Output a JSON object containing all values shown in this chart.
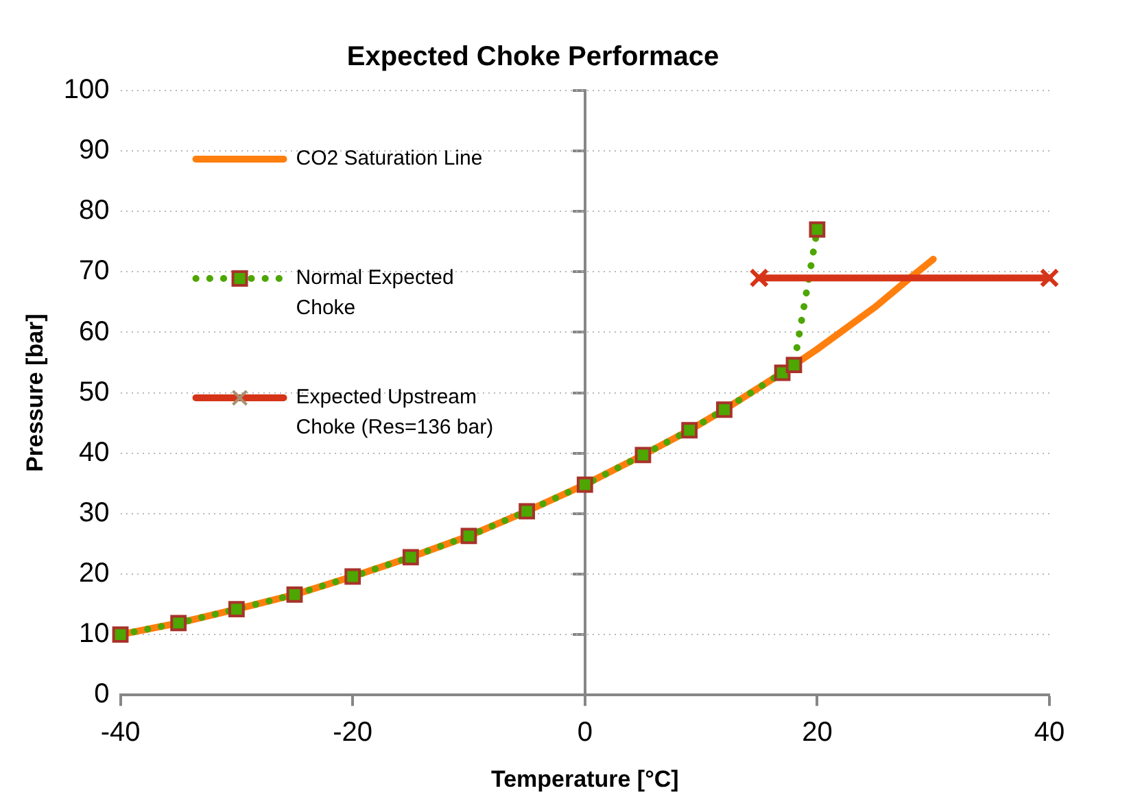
{
  "chart_data": {
    "type": "line",
    "title": "Expected Choke Performace",
    "xlabel": "Temperature [°C]",
    "ylabel": "Pressure [bar]",
    "xlim": [
      -40,
      40
    ],
    "xticks": [
      -40,
      -20,
      0,
      20,
      40
    ],
    "ylim": [
      0,
      100
    ],
    "yticks": [
      0,
      10,
      20,
      30,
      40,
      50,
      60,
      70,
      80,
      90,
      100
    ],
    "grid": "y",
    "legend": "top left",
    "series": [
      {
        "name": "CO2 Saturation Line",
        "color": "#ff7f0e",
        "line_style": "solid",
        "x": [
          -40,
          -35,
          -30,
          -25,
          -20,
          -15,
          -10,
          -5,
          0,
          5,
          9,
          12,
          17,
          18,
          20,
          22,
          25,
          28,
          30
        ],
        "values": [
          10,
          11.9,
          14.2,
          16.6,
          19.6,
          22.8,
          26.3,
          30.4,
          34.8,
          39.7,
          43.8,
          47.2,
          53.3,
          54.6,
          57.2,
          60,
          64.2,
          69,
          72.1
        ]
      },
      {
        "name": "Normal Expected Choke",
        "color": "#4ea600",
        "marker": "square",
        "line_style": "dotted",
        "x": [
          -40,
          -35,
          -30,
          -25,
          -20,
          -15,
          -10,
          -5,
          0,
          5,
          9,
          12,
          17,
          18,
          20
        ],
        "values": [
          10,
          11.9,
          14.2,
          16.6,
          19.6,
          22.8,
          26.3,
          30.4,
          34.8,
          39.7,
          43.8,
          47.2,
          53.3,
          54.6,
          77
        ]
      },
      {
        "name": "Expected Upstream Choke (Res=136 bar)",
        "color": "#d63418",
        "marker": "cross",
        "line_style": "solid",
        "x": [
          15,
          40
        ],
        "values": [
          69,
          69
        ]
      }
    ]
  }
}
